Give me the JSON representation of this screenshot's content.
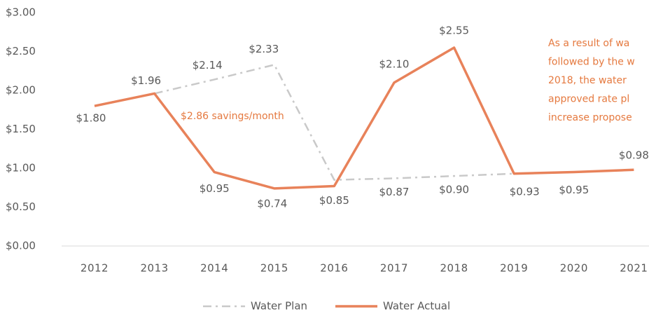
{
  "chart_data": {
    "type": "line",
    "categories": [
      "2012",
      "2013",
      "2014",
      "2015",
      "2016",
      "2017",
      "2018",
      "2019",
      "2020",
      "2021"
    ],
    "series": [
      {
        "name": "Water Plan",
        "color": "#c9c9c9",
        "dash": "dash-dot",
        "values": [
          null,
          1.96,
          2.14,
          2.33,
          0.85,
          0.87,
          0.9,
          0.93,
          null,
          null
        ],
        "value_labels": [
          null,
          null,
          "$2.14",
          "$2.33",
          "$0.85",
          "$0.87",
          "$0.90",
          null,
          null,
          null
        ]
      },
      {
        "name": "Water Actual",
        "color": "#e8825a",
        "values": [
          1.8,
          1.96,
          0.95,
          0.74,
          0.77,
          2.1,
          2.55,
          0.93,
          0.95,
          0.98
        ],
        "value_labels": [
          "$1.80",
          "$1.96",
          "$0.95",
          "$0.74",
          null,
          "$2.10",
          "$2.55",
          "$0.93",
          "$0.95",
          "$0.98"
        ]
      }
    ],
    "ylim": [
      0,
      3
    ],
    "yticks": [
      {
        "value": 0,
        "label": "$0.00"
      },
      {
        "value": 0.5,
        "label": "$0.50"
      },
      {
        "value": 1,
        "label": "$1.00"
      },
      {
        "value": 1.5,
        "label": "$1.50"
      },
      {
        "value": 2,
        "label": "$2.00"
      },
      {
        "value": 2.5,
        "label": "$2.50"
      },
      {
        "value": 3,
        "label": "$3.00"
      }
    ],
    "annotations": [
      "$2.86 savings/month"
    ],
    "side_note": [
      "As a result of wa",
      "followed by the w",
      "2018, the water",
      "approved rate pl",
      "increase propose"
    ],
    "legend": "bottom"
  }
}
